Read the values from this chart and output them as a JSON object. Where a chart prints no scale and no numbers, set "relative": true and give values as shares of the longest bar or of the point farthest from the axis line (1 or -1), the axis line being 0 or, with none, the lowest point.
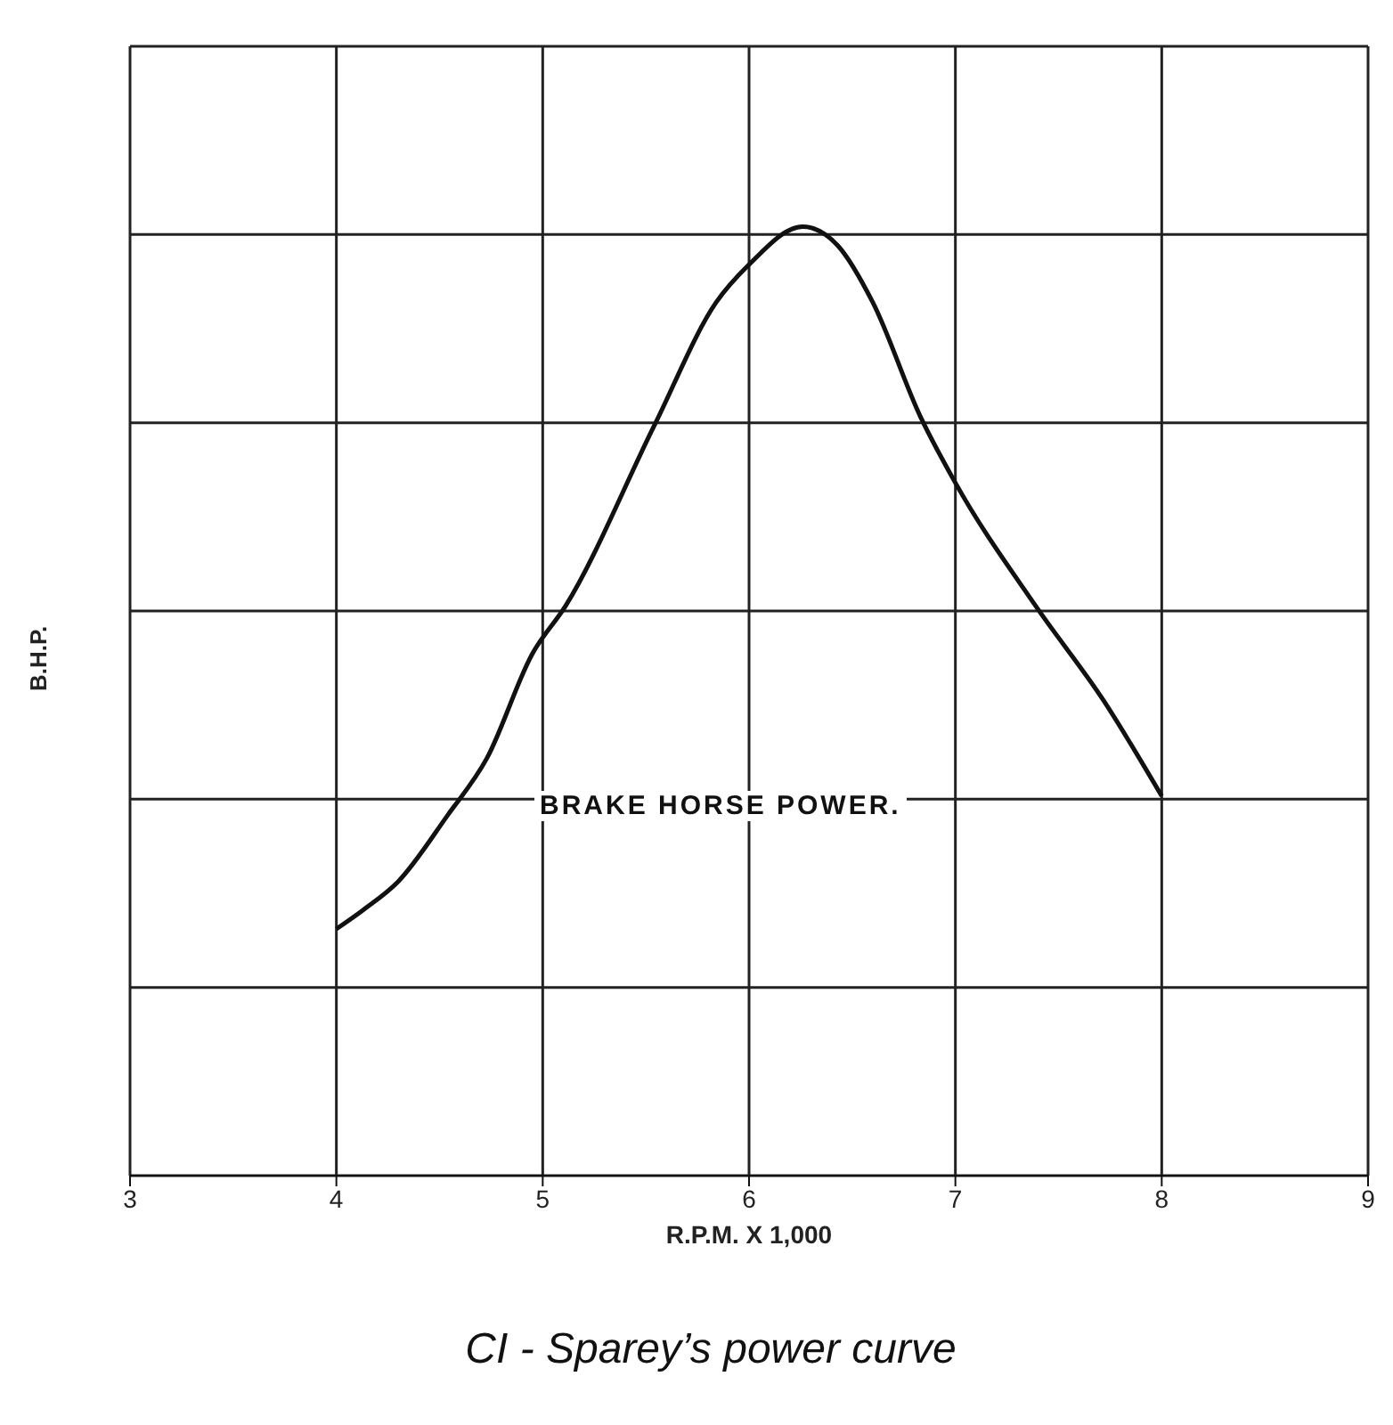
{
  "chart_data": {
    "type": "line",
    "title": "CI - Sparey’s power curve",
    "xlabel": "R.P.M. X 1,000",
    "ylabel": "B.H.P.",
    "annotations": [
      "BRAKE HORSE POWER."
    ],
    "relative": true,
    "xlim": [
      3,
      9
    ],
    "xticks": [
      3,
      4,
      5,
      6,
      7,
      8,
      9
    ],
    "grid": true,
    "marker": "none",
    "line_style": "solid",
    "x": [
      4.0,
      4.13,
      4.3,
      4.54,
      4.73,
      4.95,
      5.11,
      5.54,
      5.84,
      6.0,
      6.26,
      6.43,
      6.6,
      6.83,
      7.0,
      7.39,
      7.72,
      8.0
    ],
    "series": [
      {
        "color": "#111111",
        "values": [
          0.26,
          0.28,
          0.31,
          0.38,
          0.44,
          0.55,
          0.6,
          0.79,
          0.92,
          0.96,
          1,
          0.98,
          0.92,
          0.8,
          0.73,
          0.6,
          0.5,
          0.4
        ]
      }
    ]
  }
}
